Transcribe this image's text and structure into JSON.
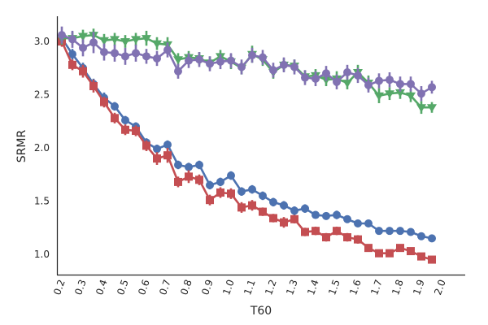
{
  "chart_data": {
    "type": "line",
    "xlabel": "T60",
    "ylabel": "SRMR",
    "grid": false,
    "xlim": [
      0.2,
      2.0
    ],
    "ylim": [
      0.8,
      3.25
    ],
    "x_ticks": [
      0.2,
      0.3,
      0.4,
      0.5,
      0.6,
      0.7,
      0.8,
      0.9,
      1.0,
      1.1,
      1.2,
      1.3,
      1.4,
      1.5,
      1.6,
      1.7,
      1.8,
      1.9,
      2.0
    ],
    "x_tick_labels": [
      "0.2",
      "0.3",
      "0.4",
      "0.5",
      "0.6",
      "0.7",
      "0.8",
      "0.9",
      "1.0",
      "1.1",
      "1.2",
      "1.3",
      "1.4",
      "1.5",
      "1.6",
      "1.7",
      "1.8",
      "1.9",
      "2.0"
    ],
    "y_ticks": [
      1.0,
      1.5,
      2.0,
      2.5,
      3.0
    ],
    "y_tick_labels": [
      "1.0",
      "1.5",
      "2.0",
      "2.5",
      "3.0"
    ],
    "x": [
      0.2,
      0.25,
      0.3,
      0.35,
      0.4,
      0.45,
      0.5,
      0.55,
      0.6,
      0.65,
      0.7,
      0.75,
      0.8,
      0.85,
      0.9,
      0.95,
      1.0,
      1.05,
      1.1,
      1.15,
      1.2,
      1.25,
      1.3,
      1.35,
      1.4,
      1.45,
      1.5,
      1.55,
      1.6,
      1.65,
      1.7,
      1.75,
      1.8,
      1.85,
      1.9,
      1.95
    ],
    "series": [
      {
        "color": "#4c72b0",
        "marker": "circle",
        "values": [
          3.03,
          2.88,
          2.75,
          2.6,
          2.47,
          2.39,
          2.26,
          2.2,
          2.05,
          1.99,
          2.03,
          1.84,
          1.82,
          1.84,
          1.65,
          1.68,
          1.74,
          1.59,
          1.61,
          1.55,
          1.49,
          1.46,
          1.41,
          1.43,
          1.37,
          1.36,
          1.37,
          1.33,
          1.29,
          1.29,
          1.22,
          1.22,
          1.22,
          1.21,
          1.17,
          1.15
        ],
        "errors": [
          0.04,
          0.05,
          0.05,
          0.05,
          0.05,
          0.04,
          0.04,
          0.04,
          0.04,
          0.04,
          0.04,
          0.04,
          0.04,
          0.04,
          0.04,
          0.04,
          0.04,
          0.04,
          0.04,
          0.04,
          0.04,
          0.04,
          0.04,
          0.04,
          0.03,
          0.03,
          0.04,
          0.03,
          0.03,
          0.03,
          0.03,
          0.03,
          0.03,
          0.03,
          0.03,
          0.02
        ]
      },
      {
        "color": "#c44e52",
        "marker": "square",
        "values": [
          3.0,
          2.78,
          2.72,
          2.58,
          2.43,
          2.28,
          2.17,
          2.16,
          2.02,
          1.9,
          1.93,
          1.68,
          1.73,
          1.7,
          1.51,
          1.58,
          1.57,
          1.44,
          1.46,
          1.4,
          1.34,
          1.3,
          1.33,
          1.21,
          1.22,
          1.16,
          1.22,
          1.16,
          1.14,
          1.06,
          1.01,
          1.01,
          1.06,
          1.03,
          0.98,
          0.95
        ],
        "errors": [
          0.05,
          0.05,
          0.06,
          0.06,
          0.05,
          0.05,
          0.05,
          0.05,
          0.05,
          0.06,
          0.07,
          0.05,
          0.06,
          0.05,
          0.05,
          0.05,
          0.05,
          0.05,
          0.05,
          0.04,
          0.04,
          0.05,
          0.04,
          0.04,
          0.04,
          0.04,
          0.04,
          0.04,
          0.04,
          0.03,
          0.03,
          0.03,
          0.03,
          0.03,
          0.03,
          0.02
        ]
      },
      {
        "color": "#55a868",
        "marker": "triangle-down",
        "values": [
          3.03,
          3.03,
          3.05,
          3.06,
          3.01,
          3.02,
          3.0,
          3.02,
          3.03,
          2.98,
          2.97,
          2.83,
          2.85,
          2.84,
          2.8,
          2.86,
          2.81,
          2.75,
          2.88,
          2.83,
          2.71,
          2.78,
          2.77,
          2.67,
          2.68,
          2.64,
          2.65,
          2.61,
          2.71,
          2.61,
          2.49,
          2.51,
          2.52,
          2.49,
          2.38,
          2.38
        ],
        "errors": [
          0.06,
          0.06,
          0.06,
          0.06,
          0.06,
          0.06,
          0.06,
          0.06,
          0.07,
          0.06,
          0.07,
          0.06,
          0.06,
          0.06,
          0.06,
          0.06,
          0.07,
          0.06,
          0.08,
          0.06,
          0.06,
          0.06,
          0.06,
          0.06,
          0.06,
          0.06,
          0.07,
          0.06,
          0.07,
          0.07,
          0.07,
          0.06,
          0.06,
          0.06,
          0.06,
          0.05
        ]
      },
      {
        "color": "#8172b2",
        "marker": "circle",
        "values": [
          3.06,
          3.02,
          2.94,
          2.99,
          2.9,
          2.89,
          2.86,
          2.89,
          2.86,
          2.84,
          2.92,
          2.72,
          2.82,
          2.83,
          2.79,
          2.81,
          2.82,
          2.76,
          2.87,
          2.85,
          2.73,
          2.78,
          2.76,
          2.66,
          2.65,
          2.7,
          2.62,
          2.71,
          2.68,
          2.59,
          2.63,
          2.64,
          2.6,
          2.6,
          2.51,
          2.57
        ],
        "errors": [
          0.08,
          0.08,
          0.08,
          0.1,
          0.08,
          0.08,
          0.08,
          0.08,
          0.07,
          0.07,
          0.07,
          0.07,
          0.07,
          0.07,
          0.07,
          0.07,
          0.07,
          0.07,
          0.07,
          0.07,
          0.07,
          0.07,
          0.07,
          0.07,
          0.07,
          0.07,
          0.07,
          0.07,
          0.07,
          0.07,
          0.07,
          0.07,
          0.07,
          0.07,
          0.07,
          0.06
        ]
      }
    ]
  }
}
